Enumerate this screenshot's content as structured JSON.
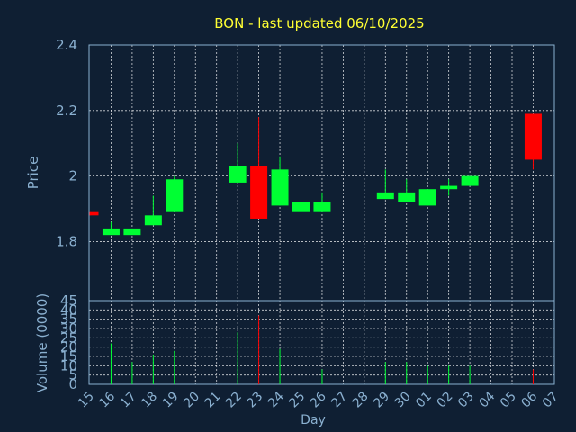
{
  "chart_data": {
    "type": "candlestick",
    "title": "BON - last updated 06/10/2025",
    "xlabel": "Day",
    "ylabel_price": "Price",
    "ylabel_volume": "Volume (0000)",
    "x_ticks": [
      "15",
      "16",
      "17",
      "18",
      "19",
      "20",
      "21",
      "22",
      "23",
      "24",
      "25",
      "26",
      "27",
      "28",
      "29",
      "30",
      "01",
      "02",
      "03",
      "04",
      "05",
      "06",
      "07"
    ],
    "price_ylim": [
      1.62,
      2.4
    ],
    "price_ticks": [
      1.8,
      2.0,
      2.2,
      2.4
    ],
    "price_tick_labels": [
      "1.8",
      "2",
      "2.2",
      "2.4"
    ],
    "volume_ylim": [
      0,
      45
    ],
    "volume_ticks": [
      0,
      5,
      10,
      15,
      20,
      25,
      30,
      35,
      40,
      45
    ],
    "volume_tick_labels": [
      "0",
      "5",
      "10",
      "15",
      "20",
      "25",
      "30",
      "35",
      "40",
      "45"
    ],
    "grid": true,
    "up_color": "#00ff33",
    "down_color": "#ff0000",
    "candles": [
      {
        "x": 15,
        "open": 1.89,
        "close": 1.88,
        "high": 1.89,
        "low": 1.88,
        "volume": 0
      },
      {
        "x": 16,
        "open": 1.82,
        "close": 1.84,
        "high": 1.86,
        "low": 1.82,
        "volume": 22
      },
      {
        "x": 17,
        "open": 1.82,
        "close": 1.84,
        "high": 1.84,
        "low": 1.82,
        "volume": 12
      },
      {
        "x": 18,
        "open": 1.85,
        "close": 1.88,
        "high": 1.94,
        "low": 1.85,
        "volume": 16
      },
      {
        "x": 19,
        "open": 1.89,
        "close": 1.99,
        "high": 2.0,
        "low": 1.89,
        "volume": 18
      },
      {
        "x": 22,
        "open": 1.98,
        "close": 2.03,
        "high": 2.1,
        "low": 1.98,
        "volume": 28
      },
      {
        "x": 23,
        "open": 2.03,
        "close": 1.87,
        "high": 2.18,
        "low": 1.87,
        "volume": 37
      },
      {
        "x": 24,
        "open": 1.91,
        "close": 2.02,
        "high": 2.06,
        "low": 1.91,
        "volume": 19
      },
      {
        "x": 25,
        "open": 1.89,
        "close": 1.92,
        "high": 1.98,
        "low": 1.89,
        "volume": 12
      },
      {
        "x": 26,
        "open": 1.89,
        "close": 1.92,
        "high": 1.95,
        "low": 1.89,
        "volume": 8
      },
      {
        "x": 29,
        "open": 1.93,
        "close": 1.95,
        "high": 2.02,
        "low": 1.93,
        "volume": 12
      },
      {
        "x": 30,
        "open": 1.92,
        "close": 1.95,
        "high": 1.99,
        "low": 1.92,
        "volume": 12
      },
      {
        "x": 1,
        "open": 1.91,
        "close": 1.96,
        "high": 1.96,
        "low": 1.91,
        "volume": 10
      },
      {
        "x": 2,
        "open": 1.96,
        "close": 1.97,
        "high": 1.99,
        "low": 1.94,
        "volume": 10
      },
      {
        "x": 3,
        "open": 1.97,
        "close": 2.0,
        "high": 2.0,
        "low": 1.97,
        "volume": 10
      },
      {
        "x": 6,
        "open": 2.19,
        "close": 2.05,
        "high": 2.19,
        "low": 2.02,
        "volume": 8
      }
    ]
  }
}
